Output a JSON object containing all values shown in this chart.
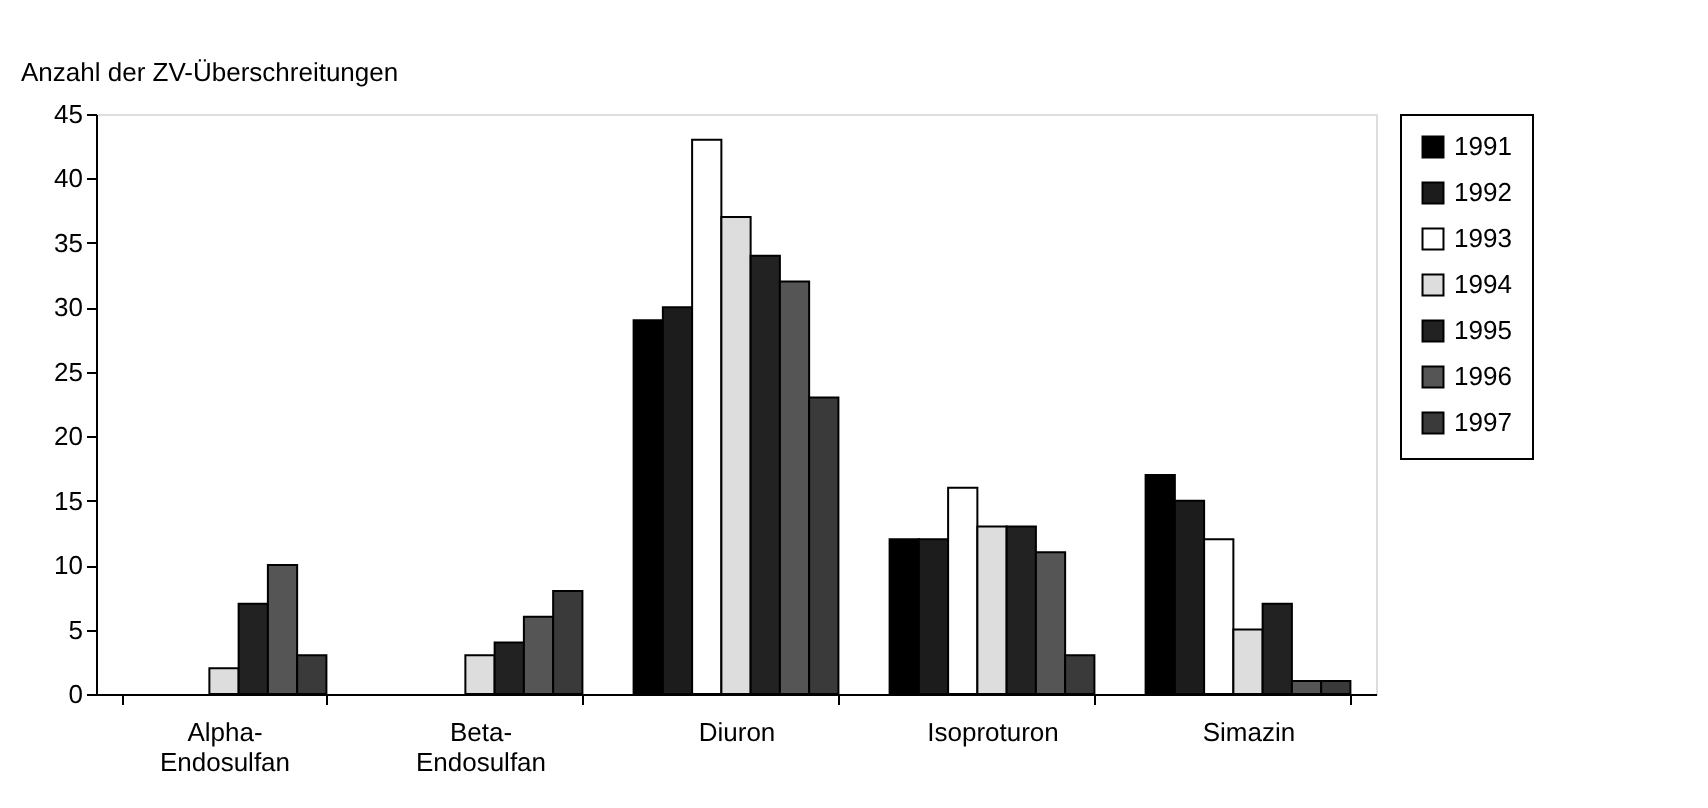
{
  "chart_data": {
    "type": "bar",
    "ylabel": "Anzahl der ZV-Überschreitungen",
    "categories": [
      "Alpha-Endosulfan",
      "Beta-Endosulfan",
      "Diuron",
      "Isoproturon",
      "Simazin"
    ],
    "series": [
      {
        "name": "1991",
        "color": "#000000",
        "values": [
          0,
          0,
          29,
          12,
          17
        ]
      },
      {
        "name": "1992",
        "color": "#1c1c1c",
        "values": [
          0,
          0,
          30,
          12,
          15
        ]
      },
      {
        "name": "1993",
        "color": "#ffffff",
        "values": [
          0,
          0,
          43,
          16,
          12
        ]
      },
      {
        "name": "1994",
        "color": "#dddddd",
        "values": [
          2,
          3,
          37,
          13,
          5
        ]
      },
      {
        "name": "1995",
        "color": "#222222",
        "values": [
          7,
          4,
          34,
          13,
          7
        ]
      },
      {
        "name": "1996",
        "color": "#555555",
        "values": [
          10,
          6,
          32,
          11,
          1
        ]
      },
      {
        "name": "1997",
        "color": "#3a3a3a",
        "values": [
          3,
          8,
          23,
          3,
          1
        ]
      }
    ],
    "ylim": [
      0,
      45
    ],
    "yticks": [
      0,
      5,
      10,
      15,
      20,
      25,
      30,
      35,
      40,
      45
    ],
    "grid": false,
    "legend": "right"
  }
}
